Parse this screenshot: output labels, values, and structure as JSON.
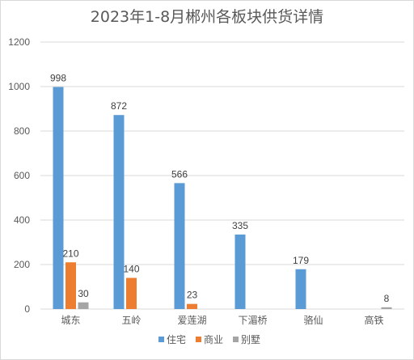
{
  "chart_data": {
    "type": "bar",
    "title": "2023年1-8月郴州各板块供货详情",
    "categories": [
      "城东",
      "五岭",
      "爱莲湖",
      "下湄桥",
      "骆仙",
      "高铁"
    ],
    "series": [
      {
        "name": "住宅",
        "color": "#5b9bd5",
        "values": [
          998,
          872,
          566,
          335,
          179,
          null
        ]
      },
      {
        "name": "商业",
        "color": "#ed7d31",
        "values": [
          210,
          140,
          23,
          null,
          null,
          null
        ]
      },
      {
        "name": "别墅",
        "color": "#a5a5a5",
        "values": [
          30,
          null,
          null,
          null,
          null,
          8
        ]
      }
    ],
    "ylim": [
      0,
      1200
    ],
    "yticks": [
      0,
      200,
      400,
      600,
      800,
      1000,
      1200
    ],
    "grid": true,
    "legend": "bottom"
  }
}
